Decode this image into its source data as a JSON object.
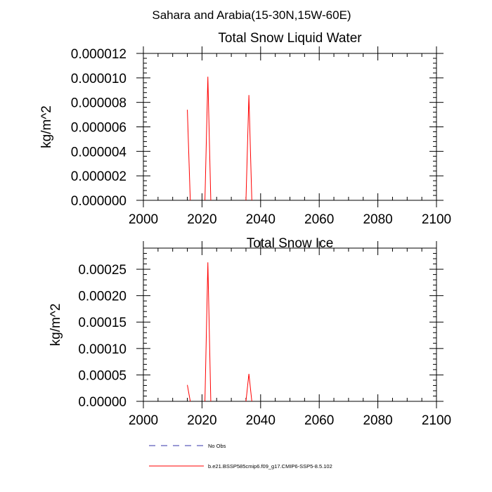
{
  "figure_title": "Sahara and Arabia(15-30N,15W-60E)",
  "colors": {
    "model": "#ff0000",
    "obs": "#3333aa",
    "axis": "#000000"
  },
  "legend": [
    {
      "label": "No Obs",
      "style": "dashed",
      "color": "#3333aa"
    },
    {
      "label": "b.e21.BSSP585cmip6.f09_g17.CMIP6-SSP5-8.5.102",
      "style": "solid",
      "color": "#ff0000"
    }
  ],
  "chart_data": [
    {
      "type": "line",
      "title": "Total Snow Liquid Water",
      "xlabel": "",
      "ylabel": "kg/m^2",
      "xlim": [
        2000,
        2100
      ],
      "ylim": [
        0,
        1.2e-05
      ],
      "xticks": [
        2000,
        2020,
        2040,
        2060,
        2080,
        2100
      ],
      "xtick_labels": [
        "2000",
        "2020",
        "2040",
        "2060",
        "2080",
        "2100"
      ],
      "yticks": [
        0,
        2e-06,
        4e-06,
        6e-06,
        8e-06,
        1e-05,
        1.2e-05
      ],
      "ytick_labels": [
        "0.000000",
        "0.000002",
        "0.000004",
        "0.000006",
        "0.000008",
        "0.000010",
        "0.000012"
      ],
      "grid": false,
      "series": [
        {
          "segments": [
            [
              [
                2015,
                7.4e-06
              ],
              [
                2016,
                0
              ]
            ],
            [
              [
                2021,
                0
              ],
              [
                2022,
                1.01e-05
              ],
              [
                2023,
                0
              ]
            ],
            [
              [
                2035,
                0
              ],
              [
                2036,
                8.6e-06
              ],
              [
                2037,
                0
              ]
            ]
          ]
        }
      ]
    },
    {
      "type": "line",
      "title": "Total Snow Ice",
      "xlabel": "",
      "ylabel": "kg/m^2",
      "xlim": [
        2000,
        2100
      ],
      "ylim": [
        0,
        0.00029
      ],
      "xticks": [
        2000,
        2020,
        2040,
        2060,
        2080,
        2100
      ],
      "xtick_labels": [
        "2000",
        "2020",
        "2040",
        "2060",
        "2080",
        "2100"
      ],
      "yticks": [
        0,
        5e-05,
        0.0001,
        0.00015,
        0.0002,
        0.00025
      ],
      "ytick_labels": [
        "0.00000",
        "0.00005",
        "0.00010",
        "0.00015",
        "0.00020",
        "0.00025"
      ],
      "grid": false,
      "series": [
        {
          "segments": [
            [
              [
                2015,
                3.1e-05
              ],
              [
                2016,
                0
              ]
            ],
            [
              [
                2021,
                0
              ],
              [
                2022,
                0.000263
              ],
              [
                2023,
                0
              ]
            ],
            [
              [
                2035,
                0
              ],
              [
                2036,
                5.2e-05
              ],
              [
                2037,
                0
              ]
            ]
          ]
        }
      ]
    }
  ]
}
